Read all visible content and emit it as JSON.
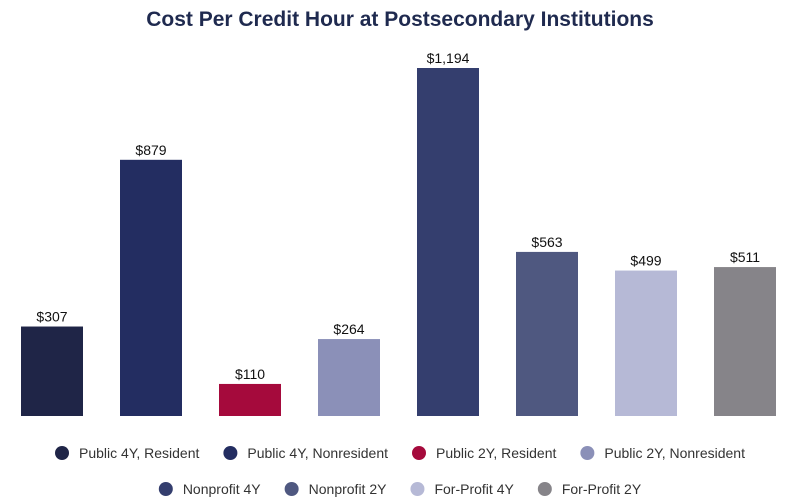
{
  "chart_data": {
    "type": "bar",
    "title": "Cost Per Credit Hour at Postsecondary Institutions",
    "categories": [
      "Public 4Y, Resident",
      "Public 4Y, Nonresident",
      "Public 2Y, Resident",
      "Public 2Y, Nonresident",
      "Nonprofit 4Y",
      "Nonprofit 2Y",
      "For-Profit 4Y",
      "For-Profit 2Y"
    ],
    "values": [
      307,
      879,
      110,
      264,
      1194,
      563,
      499,
      511
    ],
    "value_labels": [
      "$307",
      "$879",
      "$110",
      "$264",
      "$1,194",
      "$563",
      "$499",
      "$511"
    ],
    "colors": [
      "#1f2547",
      "#232d61",
      "#a50a3c",
      "#8b90b8",
      "#343e6e",
      "#4f5880",
      "#b6b9d6",
      "#868489"
    ],
    "xlabel": "",
    "ylabel": "",
    "ylim": [
      0,
      1194
    ],
    "grid": false,
    "legend_position": "bottom"
  }
}
